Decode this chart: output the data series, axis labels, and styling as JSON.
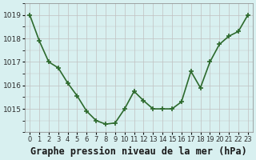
{
  "x": [
    0,
    1,
    2,
    3,
    4,
    5,
    6,
    7,
    8,
    9,
    10,
    11,
    12,
    13,
    14,
    15,
    16,
    17,
    18,
    19,
    20,
    21,
    22,
    23
  ],
  "y": [
    1019.0,
    1017.9,
    1017.0,
    1016.75,
    1016.1,
    1015.55,
    1014.9,
    1014.5,
    1014.35,
    1014.4,
    1015.0,
    1015.75,
    1015.35,
    1015.0,
    1015.0,
    1015.0,
    1015.3,
    1016.6,
    1015.9,
    1017.0,
    1017.75,
    1018.1,
    1018.3,
    1019.0
  ],
  "line_color": "#2d6a2d",
  "marker": "+",
  "bg_color": "#d8f0f0",
  "grid_color": "#c0c0c0",
  "ylabel_ticks": [
    1015,
    1016,
    1017,
    1018,
    1019
  ],
  "xlabel": "Graphe pression niveau de la mer (hPa)",
  "ylim": [
    1014.0,
    1019.5
  ],
  "xlim": [
    -0.5,
    23.5
  ],
  "tick_fontsize": 6.5,
  "xlabel_fontsize": 8.5,
  "marker_size": 5,
  "line_width": 1.2
}
